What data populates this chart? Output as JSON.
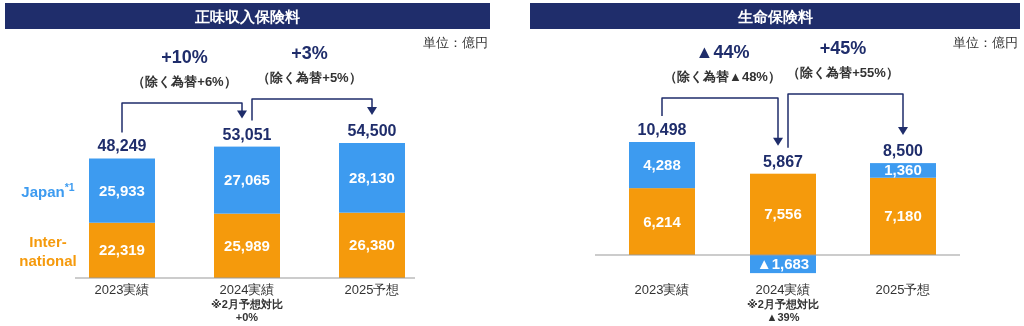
{
  "chart_data": [
    {
      "type": "bar",
      "stacked": true,
      "title": "正味収入保険料",
      "categories": [
        "2023実績",
        "2024実績",
        "2025予想"
      ],
      "series": [
        {
          "name": "Inter-national",
          "color": "#f59a0c",
          "values": [
            22319,
            25989,
            26380
          ],
          "value_labels": [
            "22,319",
            "25,989",
            "26,380"
          ]
        },
        {
          "name": "Japan$^{*1}$",
          "color": "#3d9bf0",
          "values": [
            25933,
            27065,
            28130
          ],
          "value_labels": [
            "25,933",
            "27,065",
            "28,130"
          ]
        }
      ],
      "annotations": [
        "+10%",
        "（除く為替+6%）",
        "+3%",
        "（除く為替+5%）",
        "単位：億円",
        "※2月予想対比",
        "+0%",
        "48,249",
        "53,051",
        "54,500"
      ]
    },
    {
      "type": "bar",
      "stacked": true,
      "title": "生命保険料",
      "categories": [
        "2023実績",
        "2024実績",
        "2025予想"
      ],
      "series": [
        {
          "color": "#f59a0c",
          "values": [
            6214,
            7556,
            7180
          ],
          "value_labels": [
            "6,214",
            "7,556",
            "7,180"
          ]
        },
        {
          "color": "#3d9bf0",
          "values": [
            4288,
            -1683,
            1360
          ],
          "value_labels": [
            "4,288",
            null,
            "1,360"
          ]
        }
      ],
      "annotations": [
        "▲44%",
        "（除く為替▲48%）",
        "+45%",
        "（除く為替+55%）",
        "単位：億円",
        "※2月予想対比",
        "▲39%",
        "10,498",
        "5,867",
        "8,500",
        "▲1,683"
      ]
    }
  ]
}
